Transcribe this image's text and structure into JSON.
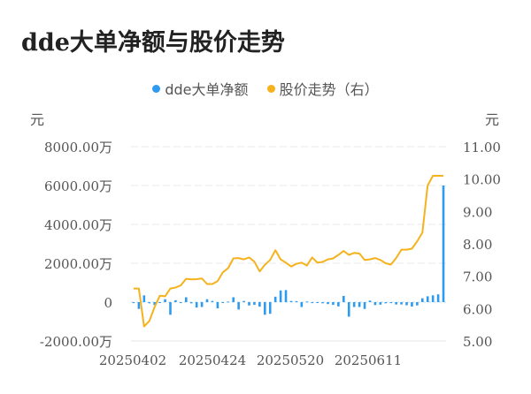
{
  "title": "dde大单净额与股价走势",
  "legend": [
    {
      "label": "dde大单净额",
      "color": "#2f9bef"
    },
    {
      "label": "股价走势（右）",
      "color": "#f5b21d"
    }
  ],
  "axes": {
    "left_unit": "元",
    "right_unit": "元",
    "left_ticks": [
      "8000.00万",
      "6000.00万",
      "4000.00万",
      "2000.00万",
      "0",
      "-2000.00万"
    ],
    "right_ticks": [
      "11.00",
      "10.00",
      "9.00",
      "8.00",
      "7.00",
      "6.00",
      "5.00"
    ],
    "x_ticks": [
      "20250402",
      "20250424",
      "20250520",
      "20250611"
    ]
  },
  "chart_data": {
    "type": "bar+line",
    "title": "dde大单净额与股价走势",
    "xlabel": "",
    "ylabel": "元",
    "ylabel_right": "元",
    "ylim": [
      -2000,
      8000
    ],
    "ylim_right": [
      5.0,
      11.0
    ],
    "y_unit": "万元",
    "grid": true,
    "legend_position": "top",
    "x_tick_labels": [
      "20250402",
      "20250424",
      "20250520",
      "20250611"
    ],
    "series": [
      {
        "name": "dde大单净额",
        "type": "bar",
        "axis": "left",
        "color": "#2f9bef",
        "values": [
          -50,
          -350,
          350,
          -60,
          -150,
          -30,
          150,
          -650,
          100,
          -40,
          250,
          -60,
          -280,
          -250,
          150,
          60,
          -320,
          -30,
          30,
          250,
          -380,
          60,
          -170,
          -140,
          -230,
          -650,
          -600,
          280,
          600,
          620,
          60,
          50,
          -250,
          30,
          -50,
          -40,
          -60,
          -100,
          -140,
          -220,
          320,
          -750,
          -250,
          -250,
          -350,
          80,
          -150,
          -130,
          -60,
          -50,
          -120,
          -120,
          -160,
          -230,
          -170,
          200,
          300,
          350,
          400,
          6000
        ]
      },
      {
        "name": "股价走势（右）",
        "type": "line",
        "axis": "right",
        "color": "#f5b21d",
        "values": [
          6.62,
          6.62,
          5.45,
          5.62,
          6.05,
          6.4,
          6.38,
          6.62,
          6.65,
          6.72,
          6.92,
          6.9,
          6.91,
          6.93,
          6.76,
          6.76,
          6.85,
          7.12,
          7.25,
          7.55,
          7.56,
          7.52,
          7.58,
          7.45,
          7.15,
          7.35,
          7.5,
          7.8,
          7.52,
          7.42,
          7.3,
          7.38,
          7.42,
          7.33,
          7.58,
          7.42,
          7.44,
          7.52,
          7.55,
          7.66,
          7.78,
          7.66,
          7.72,
          7.7,
          7.5,
          7.52,
          7.56,
          7.5,
          7.4,
          7.36,
          7.56,
          7.82,
          7.82,
          7.85,
          8.08,
          8.35,
          9.8,
          10.1,
          10.1,
          10.1
        ]
      }
    ]
  }
}
